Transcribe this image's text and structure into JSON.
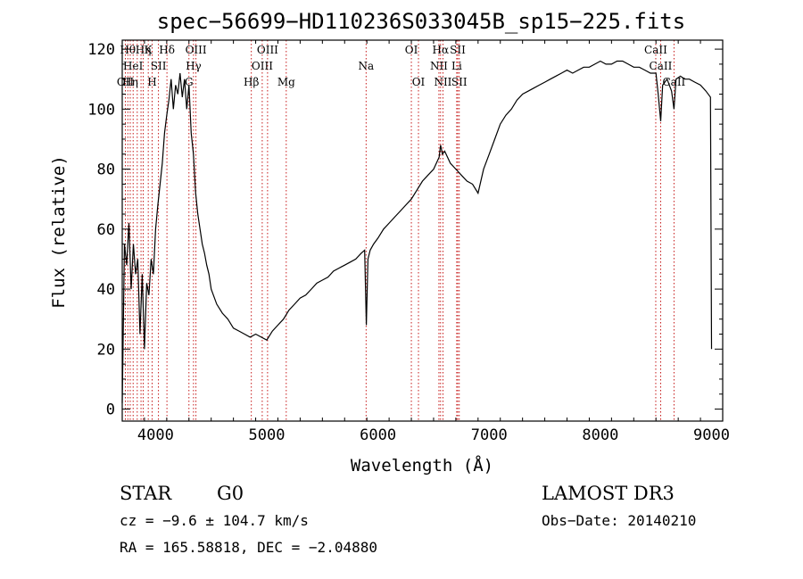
{
  "chart_data": {
    "type": "line",
    "title": "spec−56699−HD110236S033045B_sp15−225.fits",
    "xlabel": "Wavelength (Å)",
    "ylabel": "Flux (relative)",
    "xlim": [
      3700,
      9100
    ],
    "ylim": [
      -4,
      123
    ],
    "xticks": [
      4000,
      5000,
      6000,
      7000,
      8000,
      9000
    ],
    "xtick_labels": [
      "4000",
      "5000",
      "6000",
      "7000",
      "8000",
      "9000"
    ],
    "yticks": [
      0,
      20,
      40,
      60,
      80,
      100,
      120
    ],
    "ytick_labels": [
      "0",
      "20",
      "40",
      "60",
      "80",
      "100",
      "120"
    ],
    "series": [
      {
        "color": "#000000",
        "x": [
          3700,
          3720,
          3740,
          3760,
          3780,
          3800,
          3820,
          3840,
          3860,
          3880,
          3900,
          3920,
          3940,
          3960,
          3980,
          4000,
          4020,
          4040,
          4060,
          4080,
          4100,
          4120,
          4140,
          4160,
          4180,
          4200,
          4220,
          4240,
          4260,
          4280,
          4300,
          4320,
          4340,
          4360,
          4380,
          4400,
          4420,
          4440,
          4460,
          4480,
          4500,
          4550,
          4600,
          4650,
          4700,
          4750,
          4800,
          4850,
          4900,
          4950,
          5000,
          5050,
          5100,
          5150,
          5200,
          5250,
          5300,
          5350,
          5400,
          5450,
          5500,
          5550,
          5600,
          5650,
          5700,
          5750,
          5800,
          5850,
          5880,
          5895,
          5910,
          5930,
          5960,
          6000,
          6050,
          6100,
          6150,
          6200,
          6250,
          6300,
          6350,
          6400,
          6450,
          6500,
          6550,
          6563,
          6580,
          6600,
          6650,
          6700,
          6750,
          6800,
          6850,
          6900,
          6950,
          7000,
          7050,
          7100,
          7150,
          7200,
          7250,
          7300,
          7350,
          7400,
          7450,
          7500,
          7550,
          7600,
          7650,
          7700,
          7750,
          7800,
          7850,
          7900,
          7950,
          8000,
          8050,
          8100,
          8150,
          8200,
          8250,
          8300,
          8350,
          8400,
          8450,
          8500,
          8520,
          8542,
          8560,
          8600,
          8640,
          8662,
          8680,
          8720,
          8760,
          8800,
          8850,
          8900,
          8950,
          8990,
          9000
        ],
        "y": [
          2,
          55,
          48,
          62,
          40,
          55,
          45,
          50,
          25,
          45,
          20,
          42,
          38,
          50,
          45,
          60,
          68,
          75,
          82,
          92,
          98,
          103,
          110,
          100,
          108,
          105,
          112,
          104,
          110,
          100,
          108,
          92,
          85,
          72,
          65,
          60,
          55,
          52,
          48,
          45,
          40,
          35,
          32,
          30,
          27,
          26,
          25,
          24,
          25,
          24,
          23,
          26,
          28,
          30,
          33,
          35,
          37,
          38,
          40,
          42,
          43,
          44,
          46,
          47,
          48,
          49,
          50,
          52,
          53,
          28,
          50,
          53,
          55,
          57,
          60,
          62,
          64,
          66,
          68,
          70,
          73,
          76,
          78,
          80,
          84,
          88,
          85,
          86,
          82,
          80,
          78,
          76,
          75,
          72,
          80,
          85,
          90,
          95,
          98,
          100,
          103,
          105,
          106,
          107,
          108,
          109,
          110,
          111,
          112,
          113,
          112,
          113,
          114,
          114,
          115,
          116,
          115,
          115,
          116,
          116,
          115,
          114,
          114,
          113,
          112,
          112,
          105,
          96,
          108,
          110,
          106,
          100,
          110,
          111,
          110,
          110,
          109,
          108,
          106,
          104,
          20
        ]
      }
    ],
    "line_markers": [
      {
        "x": 3728,
        "label": "OII",
        "row": 3,
        "color": "#c00000"
      },
      {
        "x": 3750,
        "label": "Hθ",
        "row": 1,
        "color": "#c00000"
      },
      {
        "x": 3772,
        "label": "Hη",
        "row": 3,
        "color": "#c00000"
      },
      {
        "x": 3798,
        "label": "HeI",
        "row": 2,
        "color": "#c00000"
      },
      {
        "x": 3835,
        "label": "",
        "row": 1,
        "color": "#c00000"
      },
      {
        "x": 3869,
        "label": "",
        "row": 1,
        "color": "#c00000"
      },
      {
        "x": 3889,
        "label": "Hη",
        "row": 1,
        "color": "#c00000"
      },
      {
        "x": 3934,
        "label": "K",
        "row": 1,
        "color": "#c00000"
      },
      {
        "x": 3969,
        "label": "H",
        "row": 3,
        "color": "#c00000"
      },
      {
        "x": 4026,
        "label": "SII",
        "row": 2,
        "color": "#c00000"
      },
      {
        "x": 4102,
        "label": "Hδ",
        "row": 1,
        "color": "#c00000"
      },
      {
        "x": 4300,
        "label": "G",
        "row": 3,
        "color": "#c00000"
      },
      {
        "x": 4341,
        "label": "Hγ",
        "row": 2,
        "color": "#c00000"
      },
      {
        "x": 4363,
        "label": "OIII",
        "row": 1,
        "color": "#c00000"
      },
      {
        "x": 4861,
        "label": "Hβ",
        "row": 3,
        "color": "#c00000"
      },
      {
        "x": 4959,
        "label": "OIII",
        "row": 2,
        "color": "#c00000"
      },
      {
        "x": 5007,
        "label": "OIII",
        "row": 1,
        "color": "#c00000"
      },
      {
        "x": 5175,
        "label": "Mg",
        "row": 3,
        "color": "#c00000"
      },
      {
        "x": 5893,
        "label": "Na",
        "row": 2,
        "color": "#c00000"
      },
      {
        "x": 6300,
        "label": "OI",
        "row": 1,
        "color": "#c00000"
      },
      {
        "x": 6364,
        "label": "OI",
        "row": 3,
        "color": "#c00000"
      },
      {
        "x": 6548,
        "label": "NII",
        "row": 2,
        "color": "#c00000"
      },
      {
        "x": 6563,
        "label": "Hα",
        "row": 1,
        "color": "#c00000"
      },
      {
        "x": 6584,
        "label": "NII",
        "row": 3,
        "color": "#c00000"
      },
      {
        "x": 6708,
        "label": "Li",
        "row": 2,
        "color": "#c00000"
      },
      {
        "x": 6717,
        "label": "SII",
        "row": 1,
        "color": "#c00000"
      },
      {
        "x": 6731,
        "label": "SII",
        "row": 3,
        "color": "#c00000"
      },
      {
        "x": 8498,
        "label": "CaII",
        "row": 1,
        "color": "#c00000"
      },
      {
        "x": 8542,
        "label": "CaII",
        "row": 2,
        "color": "#c00000"
      },
      {
        "x": 8662,
        "label": "CaII",
        "row": 3,
        "color": "#c00000"
      }
    ]
  },
  "info": {
    "object_class": "STAR",
    "subclass": "G0",
    "survey": "LAMOST DR3",
    "redshift_line": "cz = −9.6 ± 104.7 km/s",
    "obs_date": "Obs−Date: 20140210",
    "coords": "RA = 165.58818, DEC =  −2.04880"
  }
}
